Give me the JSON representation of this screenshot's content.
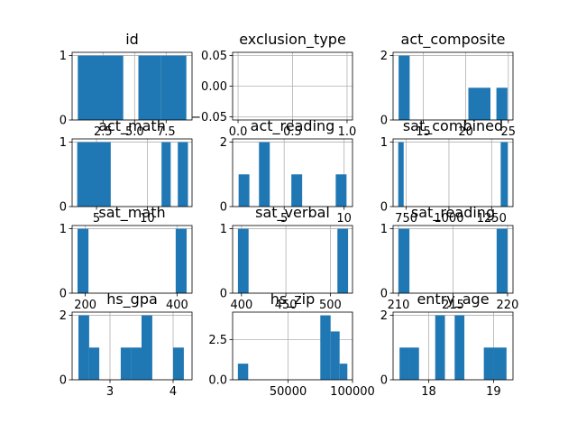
{
  "chart_data": [
    {
      "type": "bar",
      "title": "id",
      "xlim": [
        0.05,
        9.55
      ],
      "ylim": [
        0,
        1.05
      ],
      "x_ticks": [
        2.5,
        5.0,
        7.5
      ],
      "x_tick_labels": [
        "2.5",
        "5.0",
        "7.5"
      ],
      "y_ticks": [
        0,
        1
      ],
      "y_tick_labels": [
        "0",
        "1"
      ],
      "bins": [
        {
          "x0": 0.5,
          "x1": 2.3,
          "y": 1
        },
        {
          "x0": 2.3,
          "x1": 4.1,
          "y": 1
        },
        {
          "x0": 5.3,
          "x1": 7.1,
          "y": 1
        },
        {
          "x0": 7.1,
          "x1": 9.1,
          "y": 1
        }
      ],
      "grid": true
    },
    {
      "type": "bar",
      "title": "exclusion_type",
      "xlim": [
        -0.05,
        1.05
      ],
      "ylim": [
        -0.055,
        0.055
      ],
      "x_ticks": [
        0.0,
        0.5,
        1.0
      ],
      "x_tick_labels": [
        "0.0",
        "0.5",
        "1.0"
      ],
      "y_ticks": [
        -0.05,
        0.0,
        0.05
      ],
      "y_tick_labels": [
        "−0.05",
        "0.00",
        "0.05"
      ],
      "bins": [],
      "grid": true
    },
    {
      "type": "bar",
      "title": "act_composite",
      "xlim": [
        11.45,
        25.55
      ],
      "ylim": [
        0,
        2.1
      ],
      "x_ticks": [
        15,
        20,
        25
      ],
      "x_tick_labels": [
        "15",
        "20",
        "25"
      ],
      "y_ticks": [
        0,
        2
      ],
      "y_tick_labels": [
        "0",
        "2"
      ],
      "bins": [
        {
          "x0": 12.1,
          "x1": 13.4,
          "y": 2
        },
        {
          "x0": 20.3,
          "x1": 22.9,
          "y": 1
        },
        {
          "x0": 23.6,
          "x1": 24.9,
          "y": 1
        }
      ],
      "grid": true
    },
    {
      "type": "bar",
      "title": "act_math",
      "xlim": [
        2.6,
        14.4
      ],
      "ylim": [
        0,
        1.05
      ],
      "x_ticks": [
        5,
        10
      ],
      "x_tick_labels": [
        "5",
        "10"
      ],
      "y_ticks": [
        0,
        1
      ],
      "y_tick_labels": [
        "0",
        "1"
      ],
      "bins": [
        {
          "x0": 3.1,
          "x1": 6.4,
          "y": 1
        },
        {
          "x0": 11.4,
          "x1": 12.3,
          "y": 1
        },
        {
          "x0": 13.0,
          "x1": 14.0,
          "y": 1
        }
      ],
      "grid": true
    },
    {
      "type": "bar",
      "title": "act_reading",
      "xlim": [
        0.7,
        10.7
      ],
      "ylim": [
        0,
        2.1
      ],
      "x_ticks": [
        5,
        10
      ],
      "x_tick_labels": [
        "5",
        "10"
      ],
      "y_ticks": [
        0,
        2
      ],
      "y_tick_labels": [
        "0",
        "2"
      ],
      "bins": [
        {
          "x0": 1.2,
          "x1": 2.1,
          "y": 1
        },
        {
          "x0": 2.9,
          "x1": 3.8,
          "y": 2
        },
        {
          "x0": 5.6,
          "x1": 6.5,
          "y": 1
        },
        {
          "x0": 9.3,
          "x1": 10.2,
          "y": 1
        }
      ],
      "grid": true
    },
    {
      "type": "bar",
      "title": "sat_combined",
      "xlim": [
        673,
        1375
      ],
      "ylim": [
        0,
        1.05
      ],
      "x_ticks": [
        750,
        1000,
        1250
      ],
      "x_tick_labels": [
        "750",
        "1000",
        "1250"
      ],
      "y_ticks": [
        0,
        1
      ],
      "y_tick_labels": [
        "0",
        "1"
      ],
      "bins": [
        {
          "x0": 703,
          "x1": 735,
          "y": 1
        },
        {
          "x0": 1303,
          "x1": 1345,
          "y": 1
        }
      ],
      "grid": true
    },
    {
      "type": "bar",
      "title": "sat_math",
      "xlim": [
        171.3,
        432.7
      ],
      "ylim": [
        0,
        1.05
      ],
      "x_ticks": [
        200,
        400
      ],
      "x_tick_labels": [
        "200",
        "400"
      ],
      "y_ticks": [
        0,
        1
      ],
      "y_tick_labels": [
        "0",
        "1"
      ],
      "bins": [
        {
          "x0": 183.1,
          "x1": 206.9,
          "y": 1
        },
        {
          "x0": 397.1,
          "x1": 420.9,
          "y": 1
        }
      ],
      "grid": true
    },
    {
      "type": "bar",
      "title": "sat_verbal",
      "xlim": [
        390,
        525
      ],
      "ylim": [
        0,
        1.05
      ],
      "x_ticks": [
        400,
        450,
        500
      ],
      "x_tick_labels": [
        "400",
        "450",
        "500"
      ],
      "y_ticks": [
        0,
        1
      ],
      "y_tick_labels": [
        "0",
        "1"
      ],
      "bins": [
        {
          "x0": 396,
          "x1": 408,
          "y": 1
        },
        {
          "x0": 508,
          "x1": 520,
          "y": 1
        }
      ],
      "grid": true
    },
    {
      "type": "bar",
      "title": "sat_reading",
      "xlim": [
        209.5,
        220.5
      ],
      "ylim": [
        0,
        1.05
      ],
      "x_ticks": [
        210,
        215,
        220
      ],
      "x_tick_labels": [
        "210",
        "215",
        "220"
      ],
      "y_ticks": [
        0,
        1
      ],
      "y_tick_labels": [
        "0",
        "1"
      ],
      "bins": [
        {
          "x0": 210.0,
          "x1": 211.0,
          "y": 1
        },
        {
          "x0": 219.0,
          "x1": 220.0,
          "y": 1
        }
      ],
      "grid": true
    },
    {
      "type": "bar",
      "title": "hs_gpa",
      "xlim": [
        2.4,
        4.3
      ],
      "ylim": [
        0,
        2.1
      ],
      "x_ticks": [
        3,
        4
      ],
      "x_tick_labels": [
        "3",
        "4"
      ],
      "y_ticks": [
        0,
        2
      ],
      "y_tick_labels": [
        "0",
        "2"
      ],
      "bins": [
        {
          "x0": 2.5,
          "x1": 2.67,
          "y": 2
        },
        {
          "x0": 2.67,
          "x1": 2.83,
          "y": 1
        },
        {
          "x0": 3.17,
          "x1": 3.33,
          "y": 1
        },
        {
          "x0": 3.33,
          "x1": 3.5,
          "y": 1
        },
        {
          "x0": 3.5,
          "x1": 3.67,
          "y": 2
        },
        {
          "x0": 4.0,
          "x1": 4.17,
          "y": 1
        }
      ],
      "grid": true
    },
    {
      "type": "bar",
      "title": "hs_zip",
      "xlim": [
        6900,
        100000
      ],
      "ylim": [
        0,
        4.2
      ],
      "x_ticks": [
        50000,
        100000
      ],
      "x_tick_labels": [
        "50000",
        "100000"
      ],
      "y_ticks": [
        0.0,
        2.5
      ],
      "y_tick_labels": [
        "0.0",
        "2.5"
      ],
      "bins": [
        {
          "x0": 11000,
          "x1": 19000,
          "y": 1
        },
        {
          "x0": 75000,
          "x1": 83000,
          "y": 4
        },
        {
          "x0": 83000,
          "x1": 90000,
          "y": 3
        },
        {
          "x0": 90000,
          "x1": 96000,
          "y": 1
        }
      ],
      "grid": true
    },
    {
      "type": "bar",
      "title": "entry_age",
      "xlim": [
        17.45,
        19.3
      ],
      "ylim": [
        0,
        2.1
      ],
      "x_ticks": [
        18,
        19
      ],
      "x_tick_labels": [
        "18",
        "19"
      ],
      "y_ticks": [
        0,
        2
      ],
      "y_tick_labels": [
        "0",
        "2"
      ],
      "bins": [
        {
          "x0": 17.55,
          "x1": 17.7,
          "y": 1
        },
        {
          "x0": 17.7,
          "x1": 17.85,
          "y": 1
        },
        {
          "x0": 18.1,
          "x1": 18.25,
          "y": 2
        },
        {
          "x0": 18.4,
          "x1": 18.55,
          "y": 2
        },
        {
          "x0": 18.85,
          "x1": 19.0,
          "y": 1
        },
        {
          "x0": 19.0,
          "x1": 19.2,
          "y": 1
        }
      ],
      "grid": true
    }
  ],
  "colors": {
    "bar": "#1f77b4",
    "grid": "#b0b0b0",
    "axis": "#000000"
  }
}
